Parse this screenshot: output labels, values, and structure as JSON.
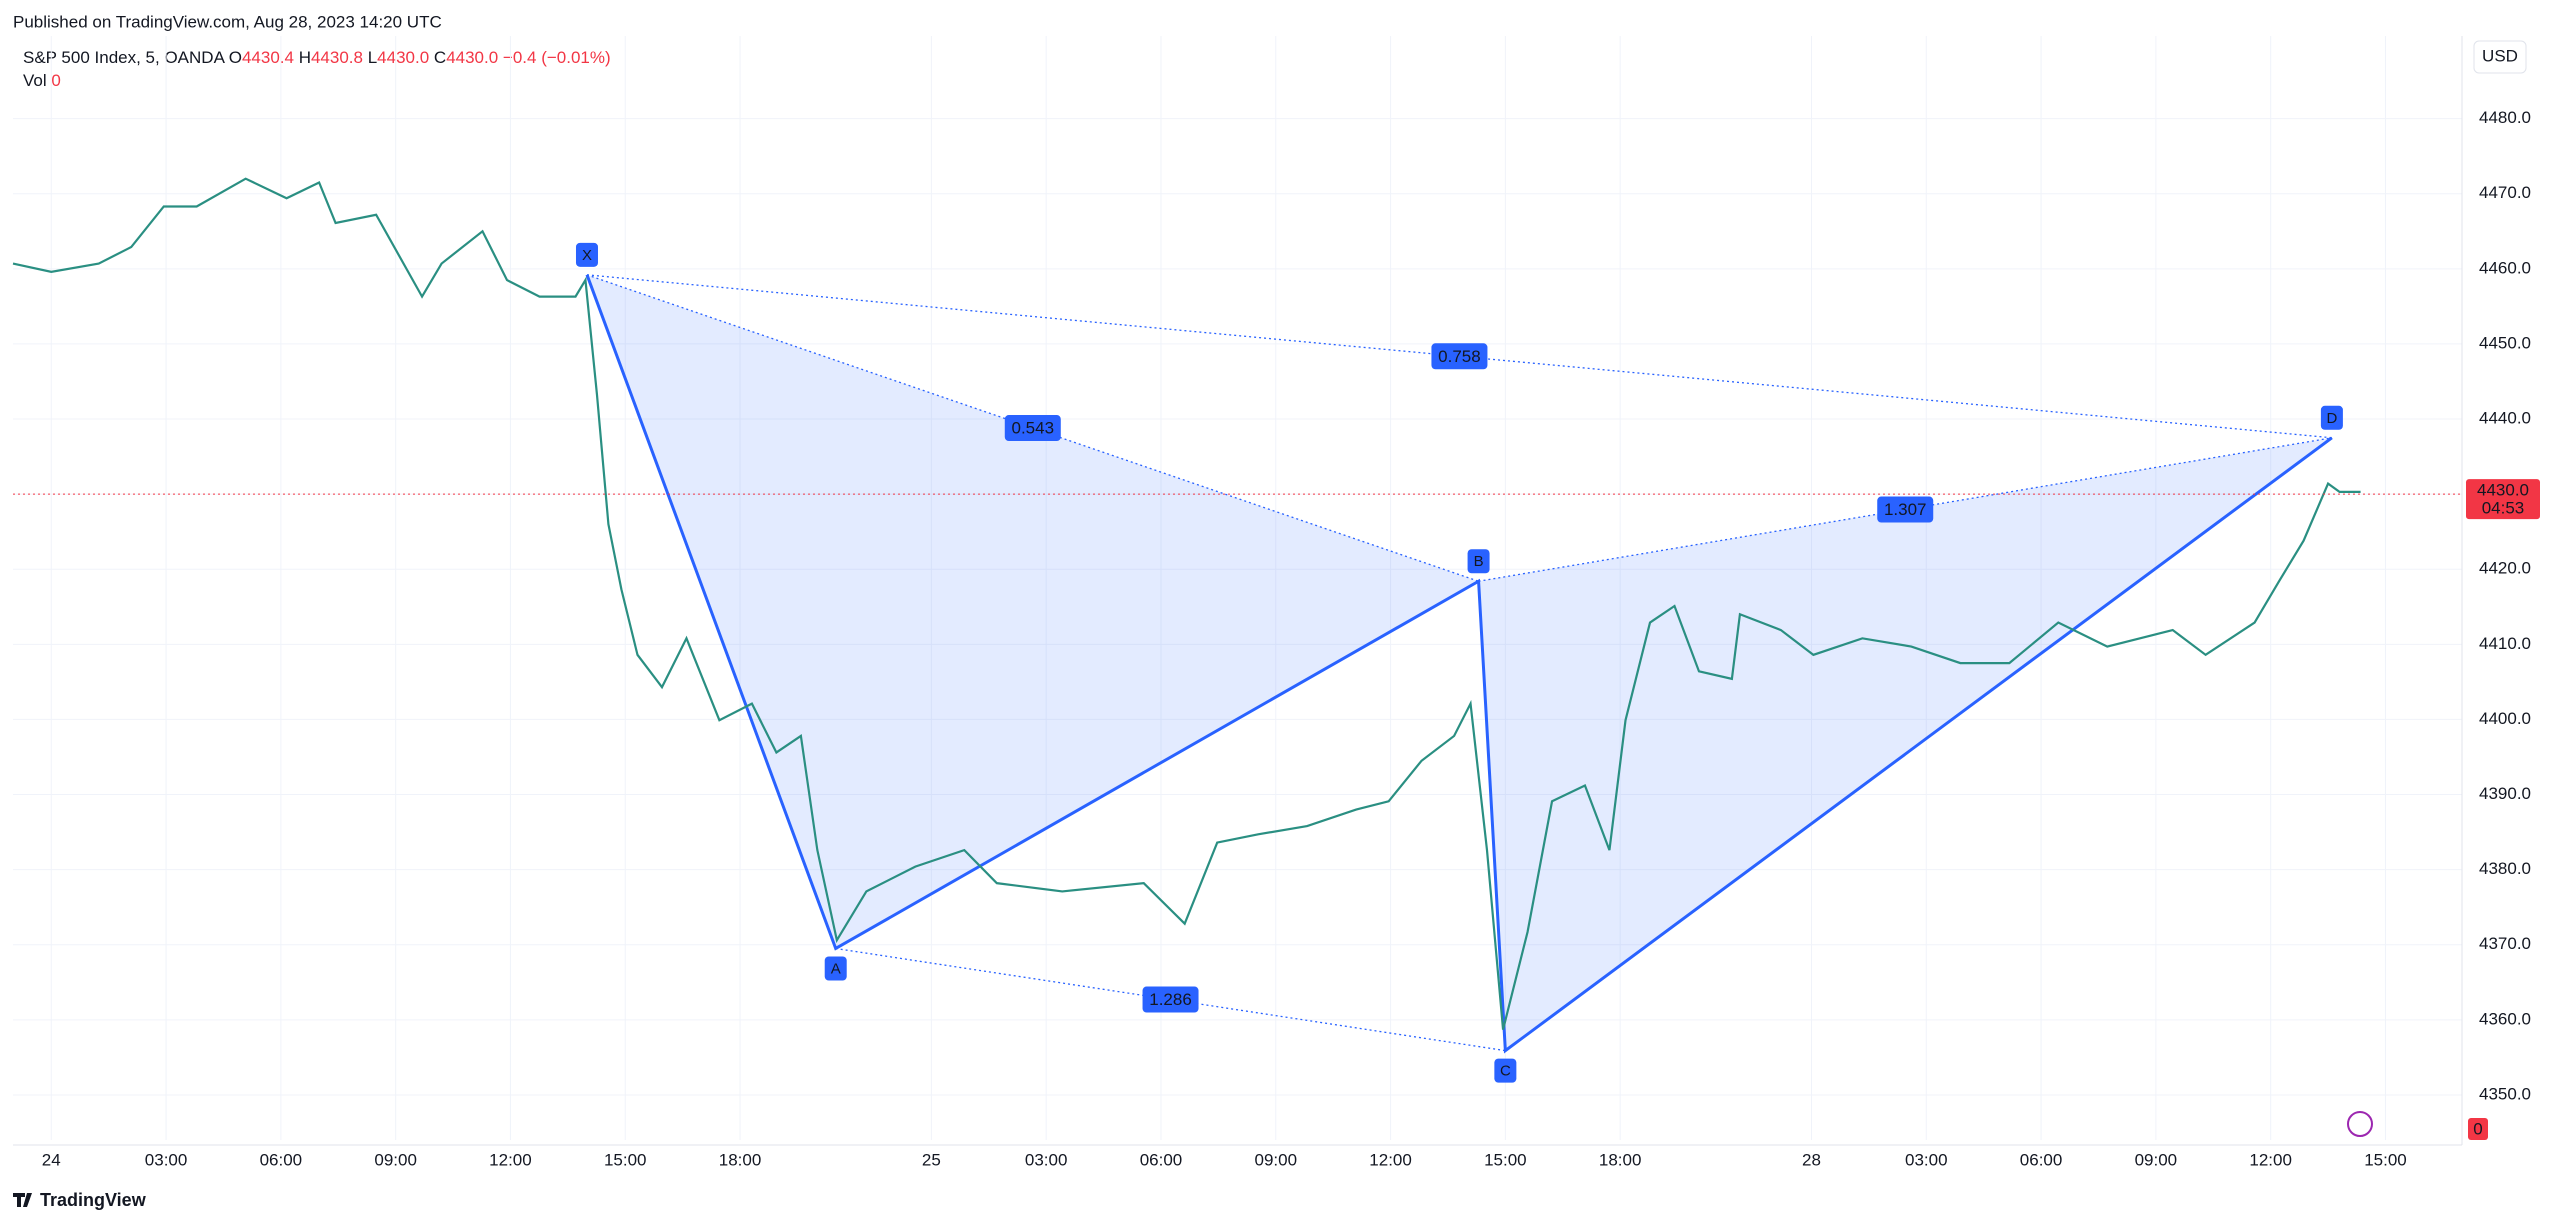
{
  "header": {
    "published": "Published on TradingView.com, Aug 28, 2023 14:20 UTC",
    "currency": "USD",
    "brand": "TradingView"
  },
  "chart_data": {
    "type": "line",
    "title": "S&P 500 Index, 5, OANDA",
    "ohlc": [
      {
        "label": "O",
        "value": "4430.4"
      },
      {
        "label": "H",
        "value": "4430.8"
      },
      {
        "label": "L",
        "value": "4430.0"
      },
      {
        "label": "C",
        "value": "4430.0"
      }
    ],
    "change": "−0.4 (−0.01%)",
    "volume": {
      "label": "Vol",
      "value": "0",
      "badge": "0"
    },
    "x": [
      -1.0,
      0.0,
      1.24,
      2.09,
      2.94,
      3.8,
      5.08,
      6.15,
      7.0,
      7.43,
      8.49,
      9.69,
      10.2,
      11.27,
      11.91,
      12.76,
      13.7,
      13.96,
      14.26,
      14.56,
      14.9,
      15.32,
      15.96,
      16.6,
      17.46,
      18.31,
      18.95,
      19.59,
      20.02,
      20.53,
      21.3,
      22.58,
      23.86,
      24.71,
      26.42,
      28.55,
      29.62,
      30.47,
      31.54,
      32.82,
      34.1,
      34.95,
      35.81,
      36.66,
      37.09,
      37.52,
      37.94,
      38.58,
      39.22,
      40.08,
      40.72,
      41.14,
      41.78,
      42.42,
      43.06,
      43.92,
      44.13,
      45.2,
      46.05,
      47.33,
      48.61,
      49.89,
      51.17,
      52.45,
      53.73,
      55.44,
      56.3,
      57.58,
      58.22,
      58.86,
      59.5,
      59.8,
      60.35
    ],
    "series": [
      {
        "name": "S&P 500 Index",
        "color": "#2a8f82",
        "values": [
          4460.7,
          4459.6,
          4460.7,
          4462.9,
          4468.3,
          4468.3,
          4472.0,
          4469.4,
          4471.5,
          4466.1,
          4467.2,
          4456.3,
          4460.7,
          4465.0,
          4458.5,
          4456.3,
          4456.3,
          4458.5,
          4443.3,
          4426.0,
          4417.3,
          4408.6,
          4404.3,
          4410.8,
          4399.9,
          4402.1,
          4395.6,
          4397.8,
          4382.6,
          4370.6,
          4377.1,
          4380.4,
          4382.6,
          4378.2,
          4377.1,
          4378.2,
          4372.8,
          4383.6,
          4384.7,
          4385.8,
          4388.0,
          4389.1,
          4394.5,
          4397.8,
          4402.1,
          4382.6,
          4358.7,
          4371.7,
          4389.1,
          4391.2,
          4382.6,
          4399.9,
          4412.9,
          4415.1,
          4406.4,
          4405.4,
          4414.0,
          4411.9,
          4408.6,
          4410.8,
          4409.7,
          4407.5,
          4407.5,
          4412.9,
          4409.7,
          4411.9,
          4408.6,
          4412.9,
          4418.4,
          4423.8,
          4431.4,
          4430.3,
          4430.3
        ]
      }
    ],
    "last_price": {
      "value": 4430.0,
      "label": "4430.0",
      "countdown": "04:53"
    },
    "pattern": {
      "points": [
        {
          "label": "X",
          "x": 14.0,
          "y": 4459.2
        },
        {
          "label": "A",
          "x": 20.5,
          "y": 4369.5
        },
        {
          "label": "B",
          "x": 37.3,
          "y": 4418.4
        },
        {
          "label": "C",
          "x": 38.0,
          "y": 4355.9
        },
        {
          "label": "D",
          "x": 59.6,
          "y": 4437.5
        }
      ],
      "ratios": [
        {
          "from": "X",
          "to": "B",
          "value": 0.543
        },
        {
          "from": "X",
          "to": "D",
          "value": 0.758
        },
        {
          "from": "B",
          "to": "D",
          "value": 1.307
        },
        {
          "from": "A",
          "to": "C",
          "value": 1.286
        }
      ]
    },
    "xlim": [
      -1,
      63
    ],
    "xticks": [
      {
        "value": 0,
        "label": "24"
      },
      {
        "value": 3,
        "label": "03:00"
      },
      {
        "value": 6,
        "label": "06:00"
      },
      {
        "value": 9,
        "label": "09:00"
      },
      {
        "value": 12,
        "label": "12:00"
      },
      {
        "value": 15,
        "label": "15:00"
      },
      {
        "value": 18,
        "label": "18:00"
      },
      {
        "value": 23,
        "label": "25"
      },
      {
        "value": 26,
        "label": "03:00"
      },
      {
        "value": 29,
        "label": "06:00"
      },
      {
        "value": 32,
        "label": "09:00"
      },
      {
        "value": 35,
        "label": "12:00"
      },
      {
        "value": 38,
        "label": "15:00"
      },
      {
        "value": 41,
        "label": "18:00"
      },
      {
        "value": 46,
        "label": "28"
      },
      {
        "value": 49,
        "label": "03:00"
      },
      {
        "value": 52,
        "label": "06:00"
      },
      {
        "value": 55,
        "label": "09:00"
      },
      {
        "value": 58,
        "label": "12:00"
      },
      {
        "value": 61,
        "label": "15:00"
      }
    ],
    "ylim": [
      4344,
      4491
    ],
    "yticks": [
      {
        "value": 4350,
        "label": "4350.0"
      },
      {
        "value": 4360,
        "label": "4360.0"
      },
      {
        "value": 4370,
        "label": "4370.0"
      },
      {
        "value": 4380,
        "label": "4380.0"
      },
      {
        "value": 4390,
        "label": "4390.0"
      },
      {
        "value": 4400,
        "label": "4400.0"
      },
      {
        "value": 4410,
        "label": "4410.0"
      },
      {
        "value": 4420,
        "label": "4420.0"
      },
      {
        "value": 4430,
        "label": "4430.0"
      },
      {
        "value": 4440,
        "label": "4440.0"
      },
      {
        "value": 4450,
        "label": "4450.0"
      },
      {
        "value": 4460,
        "label": "4460.0"
      },
      {
        "value": 4470,
        "label": "4470.0"
      },
      {
        "value": 4480,
        "label": "4480.0"
      }
    ],
    "grid": true,
    "pattern_color": "#2962ff"
  }
}
